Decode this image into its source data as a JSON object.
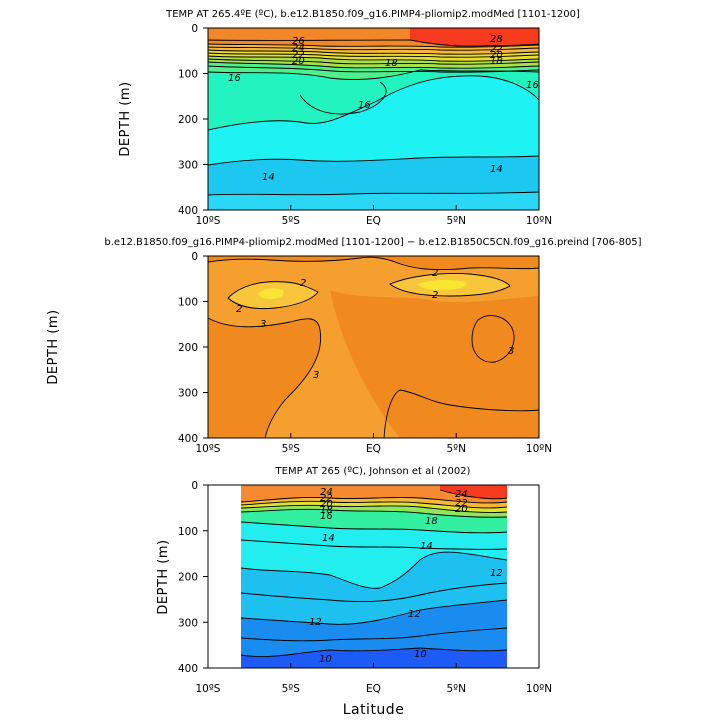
{
  "chart_data": [
    {
      "type": "contour",
      "title": "TEMP AT 265.4ºE (ºC), b.e12.B1850.f09_g16.PIMP4-pliomip2.modMed [1101-1200]",
      "xlabel": "",
      "ylabel": "DEPTH (m)",
      "xlim": [
        -10,
        10
      ],
      "ylim": [
        400,
        0
      ],
      "x_ticks": [
        "10ºS",
        "5ºS",
        "EQ",
        "5ºN",
        "10ºN"
      ],
      "y_ticks": [
        "0",
        "100",
        "200",
        "300",
        "400"
      ],
      "contour_labels": [
        "26",
        "24",
        "22",
        "20",
        "18",
        "16",
        "16",
        "16",
        "14",
        "14",
        "28",
        "22",
        "20",
        "18"
      ],
      "color_bands": [
        {
          "depth_top": 0,
          "depth_bottom": 40,
          "value": 26,
          "color": "#f2872a"
        },
        {
          "depth_top": 40,
          "depth_bottom": 55,
          "value": 24,
          "color": "#f5b63a"
        },
        {
          "depth_top": 55,
          "depth_bottom": 65,
          "value": 22,
          "color": "#e8dd2e"
        },
        {
          "depth_top": 65,
          "depth_bottom": 75,
          "value": 20,
          "color": "#a9e04a"
        },
        {
          "depth_top": 75,
          "depth_bottom": 90,
          "value": 18,
          "color": "#4ff08c"
        },
        {
          "depth_top": 90,
          "depth_bottom": 230,
          "value": 16,
          "color": "#22f3bf"
        },
        {
          "depth_top": 230,
          "depth_bottom": 370,
          "value": 14,
          "color": "#1ff2f2"
        },
        {
          "depth_top": 370,
          "depth_bottom": 400,
          "value": 12,
          "color": "#2ad7f5"
        }
      ],
      "warm_pool": {
        "lat_from": 1.5,
        "lat_to": 10,
        "depth_max": 30,
        "value": 28,
        "color": "#f53a1e"
      }
    },
    {
      "type": "contour",
      "title": "b.e12.B1850.f09_g16.PIMP4-pliomip2.modMed [1101-1200] − b.e12.B1850C5CN.f09_g16.preind [706-805]",
      "xlabel": "",
      "ylabel": "DEPTH (m)",
      "xlim": [
        -10,
        10
      ],
      "ylim": [
        400,
        0
      ],
      "x_ticks": [
        "10ºS",
        "5ºS",
        "EQ",
        "5ºN",
        "10ºN"
      ],
      "y_ticks": [
        "0",
        "100",
        "200",
        "300",
        "400"
      ],
      "contour_labels": [
        "2",
        "2",
        "2",
        "2",
        "3",
        "3",
        "3"
      ],
      "background_color": "#f5a02e",
      "regions": [
        {
          "value": 3,
          "color": "#f08a1e",
          "label": "3"
        },
        {
          "value": 2,
          "color": "#f7c63a",
          "label": "2"
        },
        {
          "value": 1.5,
          "color": "#f9e532",
          "label": ""
        }
      ]
    },
    {
      "type": "contour",
      "title": "TEMP AT 265 (ºC), Johnson et al (2002)",
      "xlabel": "Latitude",
      "ylabel": "DEPTH (m)",
      "xlim": [
        -10,
        10
      ],
      "ylim": [
        400,
        0
      ],
      "data_lat_range": [
        -8,
        8
      ],
      "x_ticks": [
        "10ºS",
        "5ºS",
        "EQ",
        "5ºN",
        "10ºN"
      ],
      "y_ticks": [
        "0",
        "100",
        "200",
        "300",
        "400"
      ],
      "contour_labels": [
        "24",
        "22",
        "20",
        "18",
        "16",
        "14",
        "14",
        "12",
        "12",
        "12",
        "10",
        "10",
        "24",
        "22",
        "20",
        "18"
      ],
      "color_bands": [
        {
          "depth_top": 0,
          "depth_bottom": 38,
          "value": 24,
          "color": "#f58a30"
        },
        {
          "depth_top": 38,
          "depth_bottom": 45,
          "value": 22,
          "color": "#f5b63a"
        },
        {
          "depth_top": 45,
          "depth_bottom": 52,
          "value": 20,
          "color": "#e0e02e"
        },
        {
          "depth_top": 52,
          "depth_bottom": 62,
          "value": 18,
          "color": "#8fe65a"
        },
        {
          "depth_top": 62,
          "depth_bottom": 80,
          "value": 16,
          "color": "#33f0a0"
        },
        {
          "depth_top": 80,
          "depth_bottom": 220,
          "value": 14,
          "color": "#22eef0"
        },
        {
          "depth_top": 220,
          "depth_bottom": 310,
          "value": 12,
          "color": "#1ec0f0"
        },
        {
          "depth_top": 310,
          "depth_bottom": 365,
          "value": 11,
          "color": "#1a8cf0"
        },
        {
          "depth_top": 365,
          "depth_bottom": 400,
          "value": 10,
          "color": "#1e5af5"
        }
      ],
      "warm_pool": {
        "lat_from": 3.5,
        "lat_to": 8,
        "depth_max": 35,
        "value": 26,
        "color": "#f53a1e"
      }
    }
  ]
}
